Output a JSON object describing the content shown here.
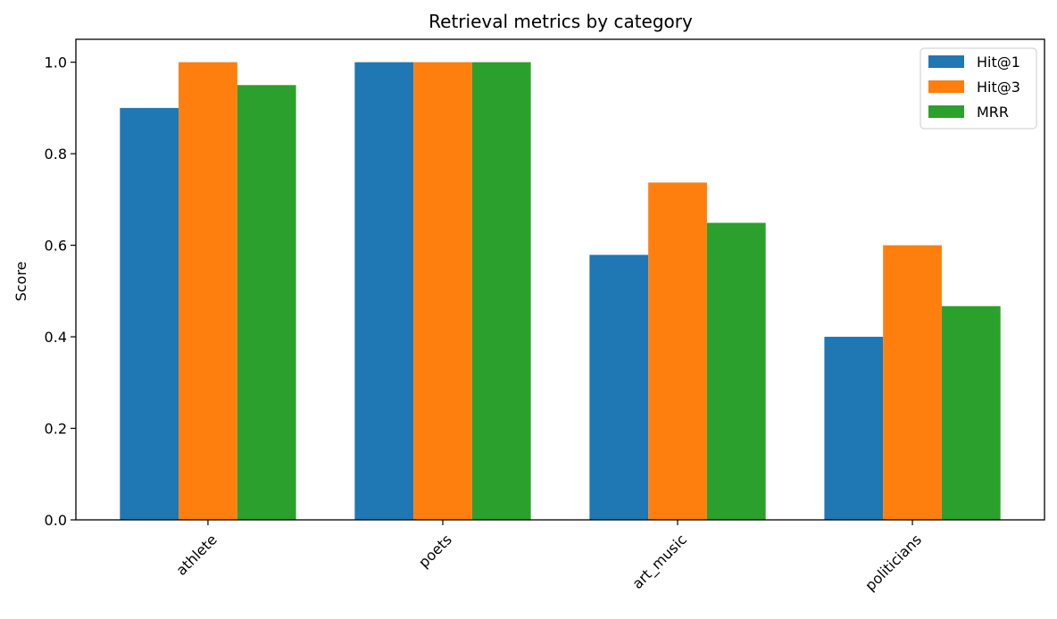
{
  "chart_data": {
    "type": "bar",
    "title": "Retrieval metrics by category",
    "xlabel": "",
    "ylabel": "Score",
    "categories": [
      "athlete",
      "poets",
      "art_music",
      "politicians"
    ],
    "series": [
      {
        "name": "Hit@1",
        "color": "#1f77b4",
        "values": [
          0.9,
          1.0,
          0.579,
          0.4
        ]
      },
      {
        "name": "Hit@3",
        "color": "#ff7f0e",
        "values": [
          1.0,
          1.0,
          0.737,
          0.6
        ]
      },
      {
        "name": "MRR",
        "color": "#2ca02c",
        "values": [
          0.95,
          1.0,
          0.649,
          0.467
        ]
      }
    ],
    "ylim": [
      0,
      1.05
    ],
    "yticks": [
      "0.0",
      "0.2",
      "0.4",
      "0.6",
      "0.8",
      "1.0"
    ],
    "legend_position": "top-right",
    "grid": false
  }
}
